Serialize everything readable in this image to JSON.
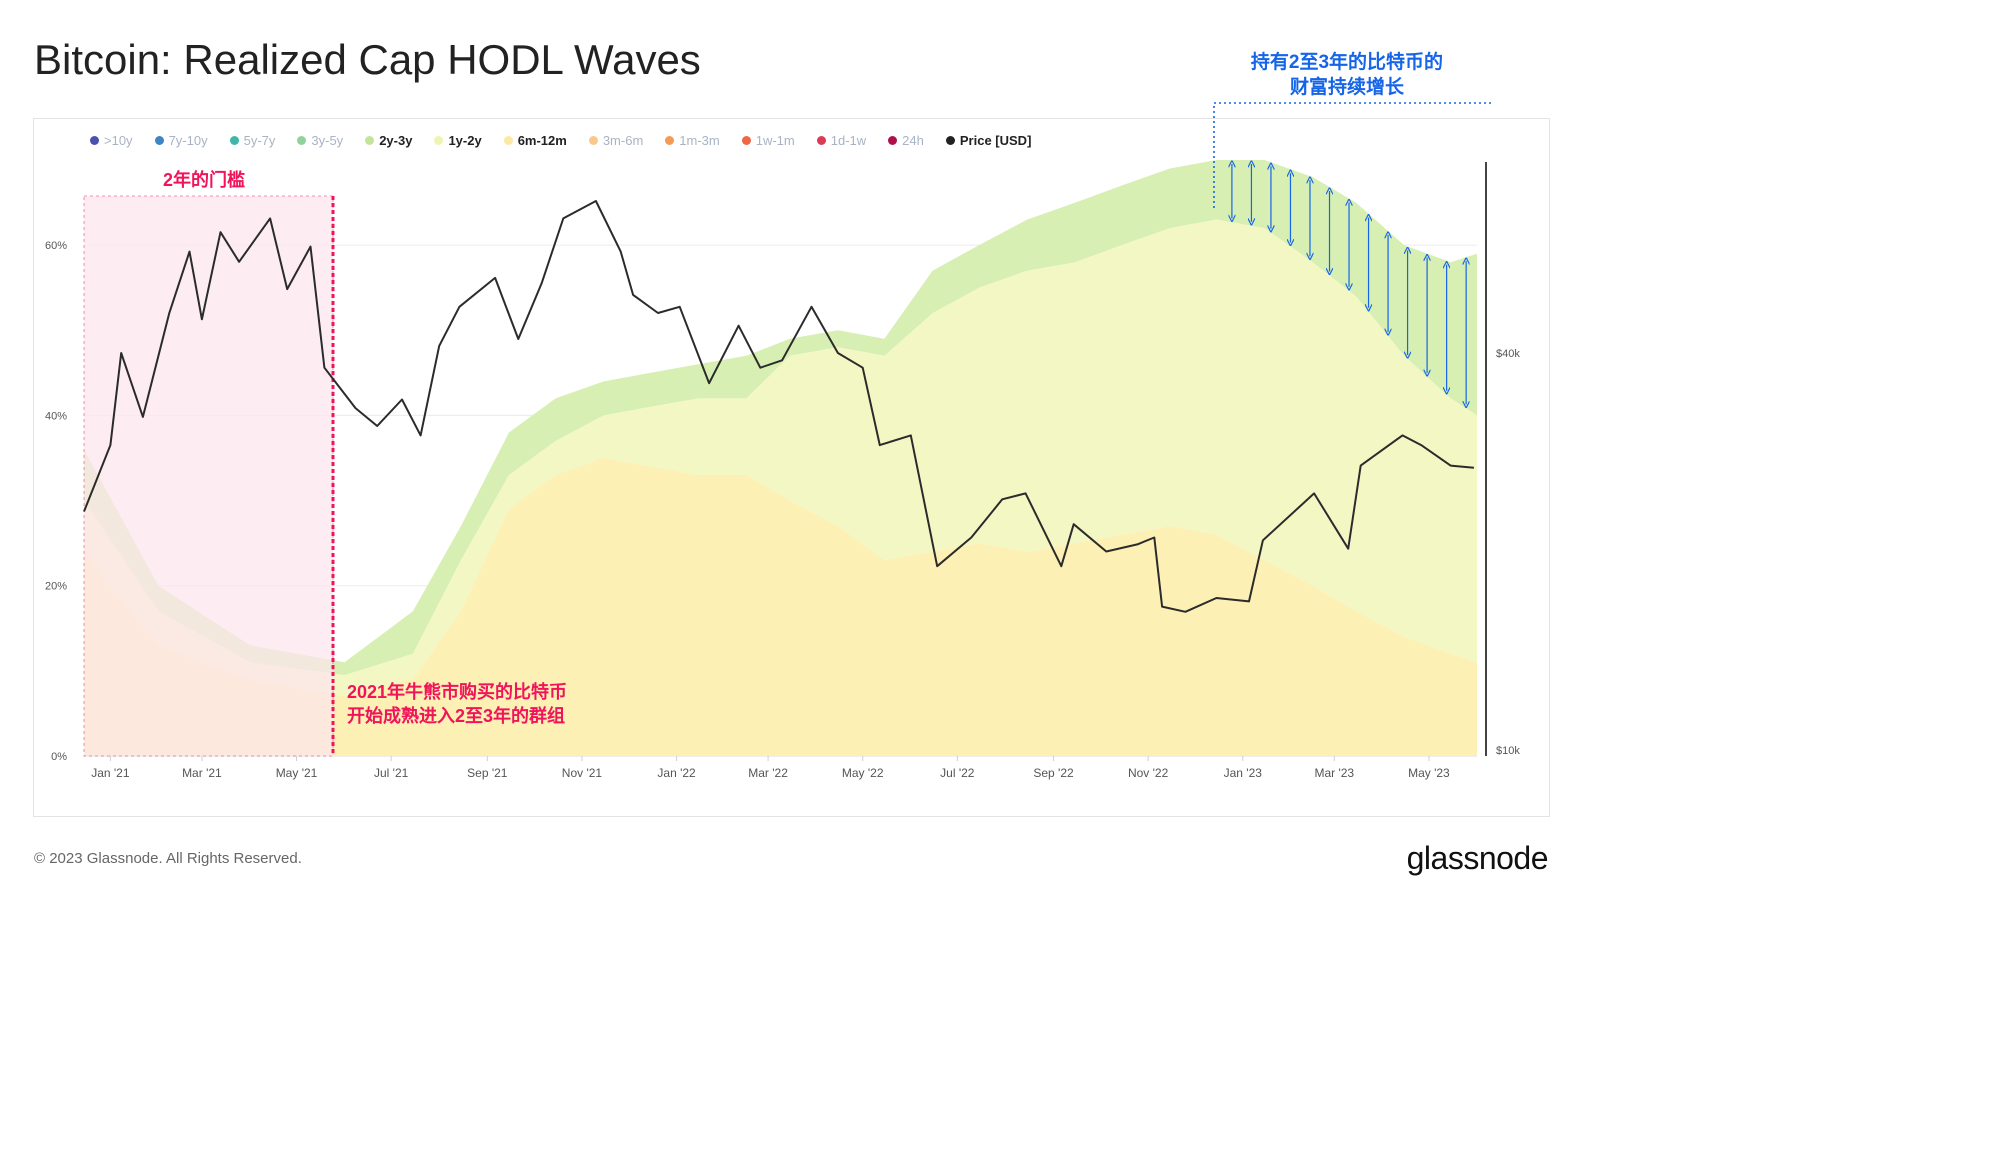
{
  "title": "Bitcoin: Realized Cap HODL Waves",
  "watermark": "glassnode",
  "footer": "© 2023 Glassnode. All Rights Reserved.",
  "brand": "glassnode",
  "annotations": {
    "threshold_label": "2年的门槛",
    "bull_bear_line1": "2021年牛熊市购买的比特币",
    "bull_bear_line2": "开始成熟进入2至3年的群组",
    "wealth_line1": "持有2至3年的比特币的",
    "wealth_line2": "财富持续增长"
  },
  "colors": {
    "price_line": "#2b2b2b",
    "threshold_box": "#fde4ef",
    "threshold_border": "#f0145a",
    "wealth_arrow": "#1565e8",
    "band_2y3y": "#d7efb2",
    "band_1y2y": "#f3f7c4",
    "band_6m12m": "#fcf0b4",
    "band_3m6m": "#fbe3b3",
    "band_3y5y": "#e4e9bd"
  },
  "chart_data": {
    "type": "area",
    "legend": [
      {
        "name": ">10y",
        "color": "#4a4fb0",
        "active": false
      },
      {
        "name": "7y-10y",
        "color": "#3f85c6",
        "active": false
      },
      {
        "name": "5y-7y",
        "color": "#3fb7a8",
        "active": false
      },
      {
        "name": "3y-5y",
        "color": "#8fd29a",
        "active": false
      },
      {
        "name": "2y-3y",
        "color": "#c3e59a",
        "active": true
      },
      {
        "name": "1y-2y",
        "color": "#eef5b0",
        "active": true
      },
      {
        "name": "6m-12m",
        "color": "#fbe9a0",
        "active": true
      },
      {
        "name": "3m-6m",
        "color": "#f8c98a",
        "active": false
      },
      {
        "name": "1m-3m",
        "color": "#f59a55",
        "active": false
      },
      {
        "name": "1w-1m",
        "color": "#ee6644",
        "active": false
      },
      {
        "name": "1d-1w",
        "color": "#dc3a55",
        "active": false
      },
      {
        "name": "24h",
        "color": "#b0104a",
        "active": false
      },
      {
        "name": "Price [USD]",
        "color": "#222222",
        "active": true
      }
    ],
    "x_ticks": [
      "Jan '21",
      "Mar '21",
      "May '21",
      "Jul '21",
      "Sep '21",
      "Nov '21",
      "Jan '22",
      "Mar '22",
      "May '22",
      "Jul '22",
      "Sep '22",
      "Nov '22",
      "Jan '23",
      "Mar '23",
      "May '23"
    ],
    "y_left_ticks": [
      "0%",
      "20%",
      "40%",
      "60%"
    ],
    "y_right_ticks": [
      "$10k",
      "$40k"
    ],
    "ylim_left": [
      0,
      70
    ],
    "x_range": [
      "2020-12-15",
      "2023-06-01"
    ],
    "series": [
      {
        "name": "2y-3y",
        "x": [
          "2020-12-15",
          "2021-02-01",
          "2021-04-01",
          "2021-06-01",
          "2021-07-15",
          "2021-08-15",
          "2021-09-15",
          "2021-10-15",
          "2021-11-15",
          "2021-12-15",
          "2022-01-15",
          "2022-02-15",
          "2022-03-15",
          "2022-04-15",
          "2022-05-15",
          "2022-06-15",
          "2022-07-15",
          "2022-08-15",
          "2022-09-15",
          "2022-10-15",
          "2022-11-15",
          "2022-12-15",
          "2023-01-15",
          "2023-02-15",
          "2023-03-15",
          "2023-04-15",
          "2023-05-15",
          "2023-06-01"
        ],
        "lower": [
          30,
          17,
          11,
          9.5,
          12,
          23,
          33,
          37,
          40,
          41,
          42,
          42,
          47,
          48,
          47,
          52,
          55,
          57,
          58,
          60,
          62,
          63,
          62,
          58,
          54,
          47,
          42,
          40
        ],
        "upper": [
          36,
          20,
          13,
          11,
          17,
          27,
          38,
          42,
          44,
          45,
          46,
          47,
          49,
          50,
          49,
          57,
          60,
          63,
          65,
          67,
          69,
          70,
          70,
          68,
          65,
          60,
          58,
          59
        ]
      },
      {
        "name": "1y-2y",
        "x": [
          "2020-12-15",
          "2021-02-01",
          "2021-04-01",
          "2021-06-01",
          "2021-07-15",
          "2021-08-15",
          "2021-09-15",
          "2021-10-15",
          "2021-11-15",
          "2021-12-15",
          "2022-01-15",
          "2022-02-15",
          "2022-03-15",
          "2022-04-15",
          "2022-05-15",
          "2022-06-15",
          "2022-07-15",
          "2022-08-15",
          "2022-09-15",
          "2022-10-15",
          "2022-11-15",
          "2022-12-15",
          "2023-01-15",
          "2023-02-15",
          "2023-03-15",
          "2023-04-15",
          "2023-05-15",
          "2023-06-01"
        ],
        "lower": [
          24,
          13,
          9,
          7,
          9,
          17,
          29,
          33,
          35,
          34,
          33,
          33,
          30,
          27,
          23,
          24,
          25,
          24,
          25,
          26,
          27,
          26,
          23,
          20,
          17,
          14,
          12,
          11
        ],
        "upper": [
          30,
          17,
          11,
          9.5,
          12,
          23,
          33,
          37,
          40,
          41,
          42,
          42,
          47,
          48,
          47,
          52,
          55,
          57,
          58,
          60,
          62,
          63,
          62,
          58,
          54,
          47,
          42,
          40
        ]
      },
      {
        "name": "6m-12m",
        "x": [
          "2020-12-15",
          "2021-02-01",
          "2021-04-01",
          "2021-06-01",
          "2021-07-15",
          "2021-08-15",
          "2021-09-15",
          "2021-10-15",
          "2021-11-15",
          "2021-12-15",
          "2022-01-15",
          "2022-02-15",
          "2022-03-15",
          "2022-04-15",
          "2022-05-15",
          "2022-06-15",
          "2022-07-15",
          "2022-08-15",
          "2022-09-15",
          "2022-10-15",
          "2022-11-15",
          "2022-12-15",
          "2023-01-15",
          "2023-02-15",
          "2023-03-15",
          "2023-04-15",
          "2023-05-15",
          "2023-06-01"
        ],
        "lower": [
          0,
          0,
          0,
          0,
          0,
          0,
          0,
          0,
          0,
          0,
          0,
          0,
          0,
          0,
          0,
          0,
          0,
          0,
          0,
          0,
          0,
          0,
          0,
          0,
          0,
          0,
          0,
          0
        ],
        "upper": [
          24,
          13,
          9,
          7,
          9,
          17,
          29,
          33,
          35,
          34,
          33,
          33,
          30,
          27,
          23,
          24,
          25,
          24,
          25,
          26,
          27,
          26,
          23,
          20,
          17,
          14,
          12,
          11
        ]
      }
    ],
    "price": {
      "name": "Price [USD]",
      "x": [
        "2020-12-15",
        "2021-01-01",
        "2021-01-08",
        "2021-01-22",
        "2021-02-08",
        "2021-02-21",
        "2021-03-01",
        "2021-03-13",
        "2021-03-25",
        "2021-04-14",
        "2021-04-25",
        "2021-05-10",
        "2021-05-19",
        "2021-06-08",
        "2021-06-22",
        "2021-07-08",
        "2021-07-20",
        "2021-08-01",
        "2021-08-14",
        "2021-09-06",
        "2021-09-21",
        "2021-10-06",
        "2021-10-20",
        "2021-11-10",
        "2021-11-26",
        "2021-12-04",
        "2021-12-20",
        "2022-01-03",
        "2022-01-22",
        "2022-02-10",
        "2022-02-24",
        "2022-03-10",
        "2022-03-29",
        "2022-04-15",
        "2022-05-01",
        "2022-05-12",
        "2022-06-01",
        "2022-06-18",
        "2022-07-10",
        "2022-07-30",
        "2022-08-14",
        "2022-09-06",
        "2022-09-14",
        "2022-10-05",
        "2022-10-25",
        "2022-11-05",
        "2022-11-10",
        "2022-11-25",
        "2022-12-15",
        "2023-01-05",
        "2023-01-14",
        "2023-02-16",
        "2023-03-10",
        "2023-03-18",
        "2023-04-14",
        "2023-04-26",
        "2023-05-15",
        "2023-05-30"
      ],
      "y": [
        23000,
        29000,
        40000,
        32000,
        46000,
        57000,
        45000,
        61000,
        55000,
        64000,
        50000,
        58000,
        38000,
        33000,
        31000,
        34000,
        30000,
        41000,
        47000,
        52000,
        42000,
        51000,
        64000,
        68000,
        57000,
        49000,
        46000,
        47000,
        36000,
        44000,
        38000,
        39000,
        47000,
        40000,
        38000,
        29000,
        30000,
        19000,
        21000,
        24000,
        24500,
        19000,
        22000,
        20000,
        20500,
        21000,
        16500,
        16200,
        17000,
        16800,
        20800,
        24500,
        20200,
        27000,
        30000,
        29000,
        27000,
        26800
      ]
    }
  }
}
